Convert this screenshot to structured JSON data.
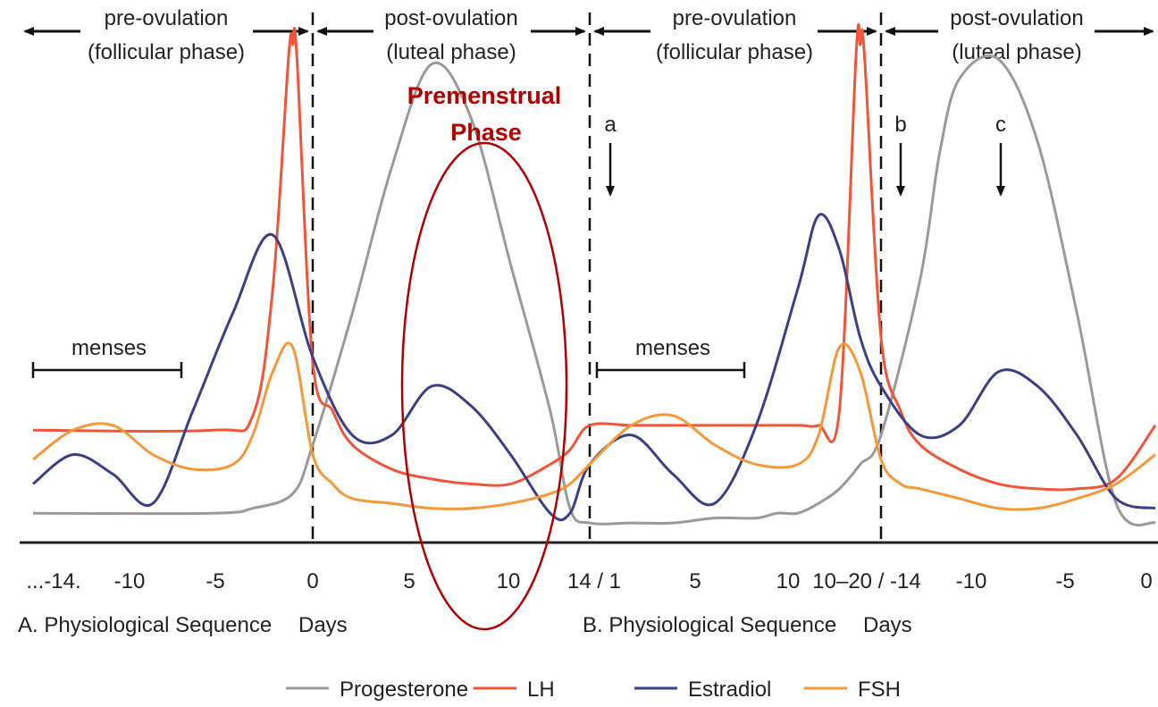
{
  "colors": {
    "progesterone": "#9a9a9a",
    "lh": "#f0553a",
    "estradiol": "#3b3f85",
    "fsh": "#f5983a",
    "axis": "#222222",
    "highlight": "#b00000"
  },
  "phases": {
    "pre_ovulation": "pre-ovulation",
    "follicular": "(follicular phase)",
    "post_ovulation": "post-ovulation",
    "luteal": "(luteal phase)"
  },
  "menses_label": "menses",
  "annotations": {
    "a": "a",
    "b": "b",
    "c": "c"
  },
  "premenstrual": {
    "line1": "Premenstrual",
    "line2": "Phase"
  },
  "ticks_a": [
    "...-14.",
    "-10",
    "-5",
    "0",
    "5",
    "10"
  ],
  "ticks_mid": "14 / 1",
  "ticks_b": [
    "5",
    "10",
    "10–20 / -14",
    "-10",
    "-5",
    "0"
  ],
  "sequence_a": {
    "label": "A. Physiological Sequence",
    "days": "Days"
  },
  "sequence_b": {
    "label": "B. Physiological Sequence",
    "days": "Days"
  },
  "legend": [
    "Progesterone",
    "LH",
    "Estradiol",
    "FSH"
  ],
  "chart_data": {
    "type": "line",
    "xlabel": "Days",
    "series": [
      {
        "name": "Progesterone",
        "x": [
          -14,
          -5,
          -3,
          -1,
          0,
          2,
          4,
          6,
          8,
          10,
          12,
          13,
          14,
          16,
          18,
          20,
          22,
          23,
          24,
          25,
          26,
          27,
          28,
          30,
          31,
          32,
          34,
          36,
          38,
          40,
          42
        ],
        "y": [
          0.04,
          0.04,
          0.05,
          0.08,
          0.18,
          0.45,
          0.75,
          0.96,
          0.85,
          0.55,
          0.25,
          0.05,
          0.02,
          0.02,
          0.02,
          0.03,
          0.03,
          0.04,
          0.04,
          0.06,
          0.09,
          0.14,
          0.2,
          0.52,
          0.78,
          0.93,
          0.97,
          0.8,
          0.45,
          0.06,
          0.02
        ]
      },
      {
        "name": "LH",
        "x": [
          -14,
          -5,
          -3,
          -2,
          -1.2,
          -1,
          -0.8,
          0,
          1,
          2,
          4,
          6,
          8,
          10,
          12,
          13,
          14,
          16,
          18,
          20,
          22,
          24,
          25,
          26,
          26.8,
          27,
          27.2,
          28,
          29,
          30,
          32,
          34,
          36,
          38,
          40,
          42
        ],
        "y": [
          0.21,
          0.21,
          0.24,
          0.5,
          0.98,
          1.0,
          0.98,
          0.35,
          0.25,
          0.18,
          0.13,
          0.11,
          0.1,
          0.1,
          0.14,
          0.17,
          0.22,
          0.22,
          0.22,
          0.22,
          0.22,
          0.22,
          0.22,
          0.25,
          0.98,
          1.0,
          0.98,
          0.4,
          0.25,
          0.18,
          0.13,
          0.1,
          0.09,
          0.09,
          0.11,
          0.22
        ]
      },
      {
        "name": "Estradiol",
        "x": [
          -14,
          -12,
          -10,
          -8,
          -6,
          -4,
          -2,
          0,
          2,
          4,
          6,
          8,
          10,
          12,
          13,
          14,
          16,
          18,
          20,
          22,
          24,
          25,
          26,
          27,
          28,
          30,
          32,
          34,
          36,
          38,
          40,
          42
        ],
        "y": [
          0.1,
          0.16,
          0.12,
          0.06,
          0.25,
          0.45,
          0.61,
          0.36,
          0.2,
          0.2,
          0.3,
          0.26,
          0.16,
          0.04,
          0.04,
          0.14,
          0.2,
          0.12,
          0.06,
          0.22,
          0.5,
          0.65,
          0.58,
          0.4,
          0.3,
          0.2,
          0.22,
          0.33,
          0.3,
          0.2,
          0.07,
          0.05
        ]
      },
      {
        "name": "FSH",
        "x": [
          -14,
          -12,
          -10,
          -8,
          -6,
          -4,
          -3,
          -2,
          -1,
          0,
          1,
          2,
          4,
          6,
          8,
          10,
          12,
          13,
          14,
          16,
          18,
          20,
          22,
          24,
          25,
          26,
          27,
          28,
          29,
          30,
          32,
          34,
          36,
          38,
          40,
          42
        ],
        "y": [
          0.15,
          0.21,
          0.22,
          0.16,
          0.13,
          0.14,
          0.2,
          0.33,
          0.38,
          0.16,
          0.1,
          0.07,
          0.06,
          0.05,
          0.05,
          0.06,
          0.08,
          0.1,
          0.14,
          0.22,
          0.24,
          0.18,
          0.14,
          0.14,
          0.2,
          0.38,
          0.33,
          0.15,
          0.1,
          0.09,
          0.07,
          0.05,
          0.05,
          0.07,
          0.1,
          0.16
        ]
      }
    ],
    "ylim": [
      0,
      1
    ],
    "xlim": [
      -14,
      42
    ],
    "grid": false,
    "legend_position": "bottom"
  }
}
